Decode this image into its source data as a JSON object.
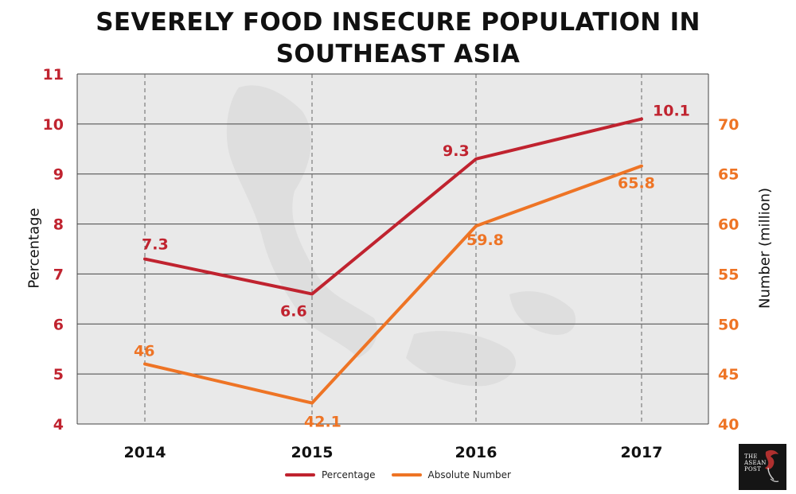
{
  "title_line1": "SEVERELY FOOD INSECURE POPULATION IN",
  "title_line2": "SOUTHEAST ASIA",
  "colors": {
    "percentage": "#c0232f",
    "absolute": "#ee7425",
    "background": "#e9e9e9",
    "grid": "#444444"
  },
  "logo_icon": "hornbill-bird-icon",
  "logo": {
    "line1": "THE",
    "line2": "ASEAN",
    "line3": "POST"
  },
  "chart_data": {
    "type": "line",
    "title": "SEVERELY FOOD INSECURE POPULATION IN SOUTHEAST ASIA",
    "categories": [
      "2014",
      "2015",
      "2016",
      "2017"
    ],
    "ylabel": "Percentage",
    "ylabel_right": "Number (million)",
    "ylim": [
      4,
      11
    ],
    "ylim_right": [
      40,
      75
    ],
    "yticks": [
      "4",
      "5",
      "6",
      "7",
      "8",
      "9",
      "10",
      "11"
    ],
    "yticks_right": [
      "40",
      "45",
      "50",
      "55",
      "60",
      "65",
      "70"
    ],
    "grid": true,
    "legend_position": "bottom",
    "series": [
      {
        "name": "Percentage",
        "axis": "left",
        "values": [
          7.3,
          6.6,
          9.3,
          10.1
        ],
        "labels": [
          "7.3",
          "6.6",
          "9.3",
          "10.1"
        ]
      },
      {
        "name": "Absolute Number",
        "axis": "right",
        "values": [
          46,
          42.1,
          59.8,
          65.8
        ],
        "labels": [
          "46",
          "42.1",
          "59.8",
          "65.8"
        ]
      }
    ]
  }
}
